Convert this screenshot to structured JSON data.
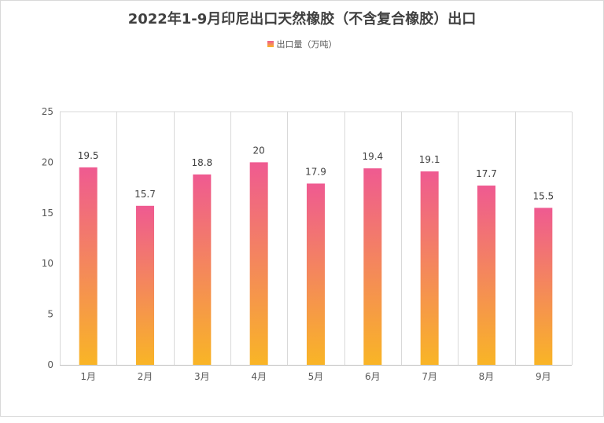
{
  "chart_data": {
    "type": "bar",
    "title": "2022年1-9月印尼出口天然橡胶（不含复合橡胶）出口",
    "categories": [
      "1月",
      "2月",
      "3月",
      "4月",
      "5月",
      "6月",
      "7月",
      "8月",
      "9月"
    ],
    "series": [
      {
        "name": "出口量（万吨）",
        "values": [
          19.5,
          15.7,
          18.8,
          20,
          17.9,
          19.4,
          19.1,
          17.7,
          15.5
        ]
      }
    ],
    "ylim": [
      0,
      25
    ],
    "yticks": [
      0,
      5,
      10,
      15,
      20,
      25
    ],
    "grid": "vertical",
    "legend_position": "top-center",
    "colors": {
      "bar_top": "#ef5a91",
      "bar_bottom": "#f9b526"
    }
  }
}
